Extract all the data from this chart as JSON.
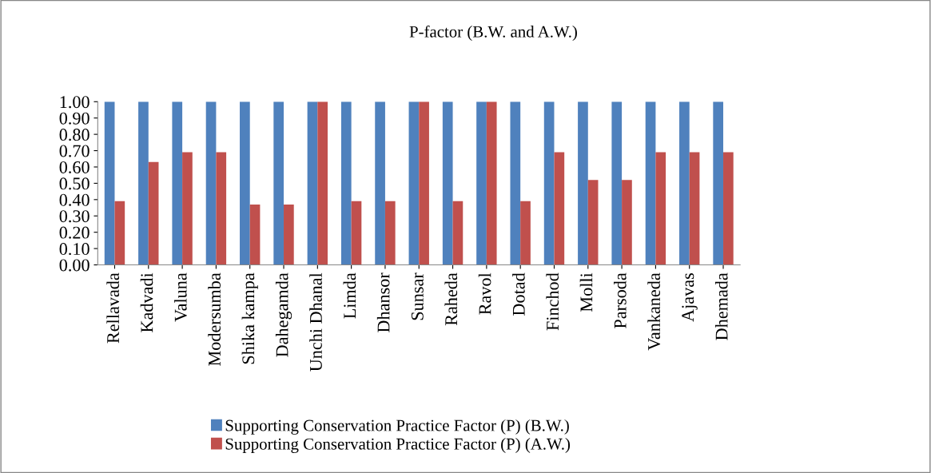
{
  "chart_data": {
    "type": "bar",
    "title": "P-factor (B.W. and A.W.)",
    "categories": [
      "Rellavada",
      "Kadvadi",
      "Valuna",
      "Modersumba",
      "Shika kampa",
      "Dahegamda",
      "Unchi Dhanal",
      "Limda",
      "Dhansor",
      "Sunsar",
      "Raheda",
      "Ravol",
      "Dotad",
      "Finchod",
      "Molli",
      "Parsoda",
      "Vankaneda",
      "Ajavas",
      "Dhemada"
    ],
    "series": [
      {
        "name": "Supporting Conservation Practice Factor (P) (B.W.)",
        "color": "#4f81bd",
        "values": [
          1,
          1,
          1,
          1,
          1,
          1,
          1,
          1,
          1,
          1,
          1,
          1,
          1,
          1,
          1,
          1,
          1,
          1,
          1
        ]
      },
      {
        "name": "Supporting Conservation Practice Factor (P) (A.W.)",
        "color": "#c0504d",
        "values": [
          0.39,
          0.63,
          0.69,
          0.69,
          0.37,
          0.37,
          1,
          0.39,
          0.39,
          1,
          0.39,
          1,
          0.39,
          0.69,
          0.52,
          0.52,
          0.69,
          0.69,
          0.69
        ]
      }
    ],
    "ylim": [
      0,
      1
    ],
    "yticks": [
      {
        "value": 0,
        "label": "0.00"
      },
      {
        "value": 0.1,
        "label": "0.10"
      },
      {
        "value": 0.2,
        "label": "0.20"
      },
      {
        "value": 0.3,
        "label": "0.30"
      },
      {
        "value": 0.4,
        "label": "0.40"
      },
      {
        "value": 0.5,
        "label": "0.50"
      },
      {
        "value": 0.6,
        "label": "0.60"
      },
      {
        "value": 0.7,
        "label": "0.70"
      },
      {
        "value": 0.8,
        "label": "0.80"
      },
      {
        "value": 0.9,
        "label": "0.90"
      },
      {
        "value": 1,
        "label": "1.00"
      }
    ],
    "grid": false,
    "legend": "bottom"
  }
}
